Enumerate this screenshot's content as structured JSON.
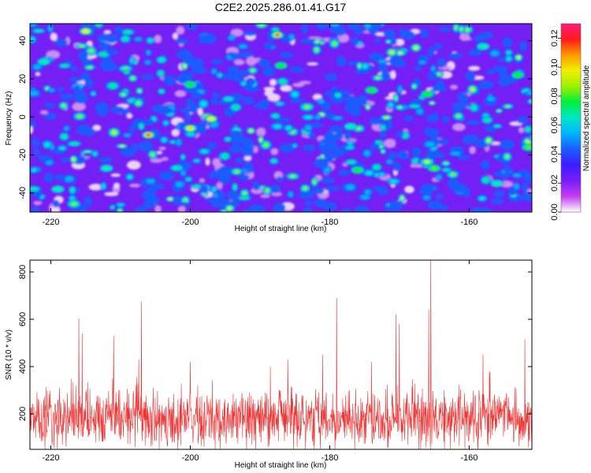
{
  "title": "C2E2.2025.286.01.41.G17",
  "chart_data": [
    {
      "type": "heatmap",
      "title": "C2E2.2025.286.01.41.G17",
      "xlabel": "Height of straight line (km)",
      "ylabel": "Frequency (Hz)",
      "xlim": [
        -223,
        -151
      ],
      "ylim": [
        -50,
        49
      ],
      "xticks": [
        -220,
        -200,
        -180,
        -160
      ],
      "yticks": [
        -40,
        -20,
        0,
        20,
        40
      ],
      "colorbar": {
        "label": "Normalized spectral amplitude",
        "range": [
          0,
          0.13
        ],
        "ticks": [
          "0.00",
          "0.02",
          "0.04",
          "0.06",
          "0.08",
          "0.10",
          "0.12"
        ],
        "colors": [
          "#ffffff",
          "#c43cf0",
          "#7a1dfa",
          "#3d1cff",
          "#1a5cff",
          "#00b4ff",
          "#00e6c8",
          "#00f03c",
          "#9cf000",
          "#f0f000",
          "#ff9900",
          "#ff1a1a",
          "#ff1a80"
        ]
      },
      "field_background": "#7420f5",
      "hotspots": [
        {
          "x": -187.5,
          "y": 43,
          "v": 0.13
        },
        {
          "x": -197.5,
          "y": 0,
          "v": 0.12
        },
        {
          "x": -206,
          "y": -9.5,
          "v": 0.12
        },
        {
          "x": -200,
          "y": -6,
          "v": 0.11
        },
        {
          "x": -215,
          "y": 45,
          "v": 0.1
        },
        {
          "x": -197,
          "y": -1,
          "v": 0.1
        },
        {
          "x": -176,
          "y": -28,
          "v": 0.08
        },
        {
          "x": -165,
          "y": -27,
          "v": 0.09
        },
        {
          "x": -153,
          "y": 22,
          "v": 0.08
        },
        {
          "x": -151.5,
          "y": -16,
          "v": 0.09
        },
        {
          "x": -187,
          "y": 27,
          "v": 0.08
        },
        {
          "x": -200,
          "y": 17,
          "v": 0.08
        },
        {
          "x": -174,
          "y": 14,
          "v": 0.08
        },
        {
          "x": -166,
          "y": 12,
          "v": 0.08
        },
        {
          "x": -221,
          "y": 29,
          "v": 0.07
        },
        {
          "x": -212,
          "y": -27,
          "v": 0.07
        },
        {
          "x": -177,
          "y": -5,
          "v": 0.07
        },
        {
          "x": -156,
          "y": -35,
          "v": 0.07
        },
        {
          "x": -158,
          "y": 37,
          "v": 0.07
        },
        {
          "x": -219,
          "y": -38,
          "v": 0.07
        }
      ]
    },
    {
      "type": "line",
      "xlabel": "Height of straight line (km)",
      "ylabel": "SNR (10 * v/v)",
      "xlim": [
        -223,
        -151
      ],
      "ylim": [
        50,
        850
      ],
      "xticks": [
        -220,
        -200,
        -180,
        -160
      ],
      "yticks": [
        200,
        400,
        600,
        800
      ],
      "color": "#ee3333",
      "series": [
        {
          "name": "SNR",
          "baseline_mean": 175,
          "baseline_spread": 75
        }
      ],
      "peaks": [
        {
          "x": -216,
          "y": 605
        },
        {
          "x": -215.5,
          "y": 540
        },
        {
          "x": -207,
          "y": 675
        },
        {
          "x": -211,
          "y": 530
        },
        {
          "x": -200,
          "y": 420
        },
        {
          "x": -181,
          "y": 450
        },
        {
          "x": -179,
          "y": 690
        },
        {
          "x": -174,
          "y": 420
        },
        {
          "x": -170.5,
          "y": 620
        },
        {
          "x": -170,
          "y": 580
        },
        {
          "x": -165.5,
          "y": 850
        },
        {
          "x": -165.8,
          "y": 640
        },
        {
          "x": -158,
          "y": 450
        },
        {
          "x": -152,
          "y": 515
        },
        {
          "x": -157,
          "y": 380
        },
        {
          "x": -186,
          "y": 430
        }
      ]
    }
  ]
}
